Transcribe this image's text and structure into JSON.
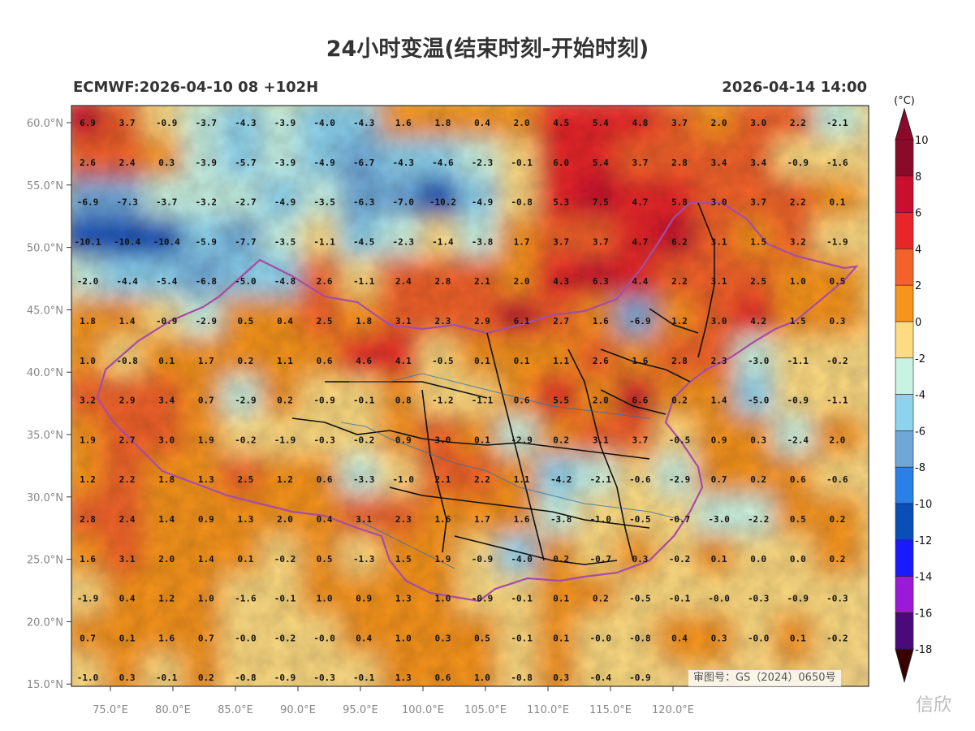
{
  "title": "24小时变温(结束时刻-开始时刻)",
  "model_run": "ECMWF:2026-04-10 08 +102H",
  "valid_time": "2026-04-14 14:00",
  "approval_number": "审图号：GS（2024）0650号",
  "watermark": "信欣",
  "colorbar": {
    "unit": "(°C)",
    "ticks": [
      "10",
      "8",
      "6",
      "4",
      "2",
      "0",
      "-2",
      "-4",
      "-6",
      "-8",
      "-10",
      "-12",
      "-14",
      "-16",
      "-18"
    ],
    "colors_top_to_bottom": [
      "#8a0a2a",
      "#c8102e",
      "#e8262a",
      "#f2622a",
      "#f7941e",
      "#fddb82",
      "#c8f2e2",
      "#8dd3ef",
      "#6fa8d8",
      "#2a7fe8",
      "#0a4fb8",
      "#1a1aff",
      "#9a1ad8",
      "#4a0a7a",
      "#7a0a0a"
    ]
  },
  "map": {
    "lat_ticks": [
      "60.0°N",
      "55.0°N",
      "50.0°N",
      "45.0°N",
      "40.0°N",
      "35.0°N",
      "30.0°N",
      "25.0°N",
      "20.0°N",
      "15.0°N"
    ],
    "lon_ticks": [
      "75.0°E",
      "80.0°E",
      "85.0°E",
      "90.0°E",
      "95.0°E",
      "100.0°E",
      "105.0°E",
      "110.0°E",
      "115.0°E",
      "120.0°E"
    ],
    "grid_values": [
      [
        "6.9",
        "3.7",
        "-0.9",
        "-3.7",
        "-4.3",
        "-3.9",
        "-4.0",
        "-4.3",
        "1.6",
        "1.8",
        "0.4",
        "2.0",
        "4.5",
        "5.4",
        "4.8",
        "3.7",
        "2.0",
        "3.0",
        "2.2",
        "-2.1"
      ],
      [
        "2.6",
        "2.4",
        "0.3",
        "-3.9",
        "-5.7",
        "-3.9",
        "-4.9",
        "-6.7",
        "-4.3",
        "-4.6",
        "-2.3",
        "-0.1",
        "6.0",
        "5.4",
        "3.7",
        "2.8",
        "3.4",
        "3.4",
        "-0.9",
        "-1.6"
      ],
      [
        "-6.9",
        "-7.3",
        "-3.7",
        "-3.2",
        "-2.7",
        "-4.9",
        "-3.5",
        "-6.3",
        "-7.0",
        "-10.2",
        "-4.9",
        "-0.8",
        "5.3",
        "7.5",
        "4.7",
        "5.8",
        "3.0",
        "3.7",
        "2.2",
        "0.1"
      ],
      [
        "-10.1",
        "-10.4",
        "-10.4",
        "-5.9",
        "-7.7",
        "-3.5",
        "-1.1",
        "-4.5",
        "-2.3",
        "-1.4",
        "-3.8",
        "1.7",
        "3.7",
        "3.7",
        "4.7",
        "6.2",
        "3.1",
        "1.5",
        "3.2",
        "-1.9"
      ],
      [
        "-2.0",
        "-4.4",
        "-5.4",
        "-6.8",
        "-5.0",
        "-4.8",
        "2.6",
        "-1.1",
        "2.4",
        "2.8",
        "2.1",
        "2.0",
        "4.3",
        "6.3",
        "4.4",
        "2.2",
        "3.1",
        "2.5",
        "1.0",
        "0.5"
      ],
      [
        "1.8",
        "1.4",
        "-0.9",
        "-2.9",
        "0.5",
        "0.4",
        "2.5",
        "1.8",
        "3.1",
        "2.3",
        "2.9",
        "6.1",
        "2.7",
        "1.6",
        "-6.9",
        "1.2",
        "3.0",
        "4.2",
        "1.5",
        "0.3"
      ],
      [
        "1.0",
        "-0.8",
        "0.1",
        "1.7",
        "0.2",
        "1.1",
        "0.6",
        "4.6",
        "4.1",
        "-0.5",
        "0.1",
        "0.1",
        "1.1",
        "2.6",
        "1.6",
        "2.8",
        "2.3",
        "-3.0",
        "-1.1",
        "-0.2"
      ],
      [
        "3.2",
        "2.9",
        "3.4",
        "0.7",
        "-2.9",
        "0.2",
        "-0.9",
        "-0.1",
        "0.8",
        "-1.2",
        "-1.1",
        "0.6",
        "5.5",
        "2.0",
        "6.6",
        "0.2",
        "1.4",
        "-5.0",
        "-0.9",
        "-1.1"
      ],
      [
        "1.9",
        "2.7",
        "3.0",
        "1.9",
        "-0.2",
        "-1.9",
        "-0.3",
        "-0.2",
        "0.9",
        "3.0",
        "0.1",
        "-2.9",
        "0.2",
        "3.1",
        "3.7",
        "-0.5",
        "0.9",
        "0.3",
        "-2.4",
        "2.0"
      ],
      [
        "1.2",
        "2.2",
        "1.8",
        "1.3",
        "2.5",
        "1.2",
        "0.6",
        "-3.3",
        "-1.0",
        "2.1",
        "2.2",
        "1.1",
        "-4.2",
        "-2.1",
        "-0.6",
        "-2.9",
        "0.7",
        "0.2",
        "0.6",
        "-0.6"
      ],
      [
        "2.8",
        "2.4",
        "1.4",
        "0.9",
        "1.3",
        "2.0",
        "0.4",
        "3.1",
        "2.3",
        "1.6",
        "1.7",
        "1.6",
        "-3.8",
        "-1.0",
        "-0.5",
        "-0.7",
        "-3.0",
        "-2.2",
        "0.5",
        "0.2"
      ],
      [
        "1.6",
        "3.1",
        "2.0",
        "1.4",
        "0.1",
        "-0.2",
        "0.5",
        "-1.3",
        "1.5",
        "1.9",
        "-0.9",
        "-4.0",
        "0.2",
        "-0.7",
        "0.3",
        "-0.2",
        "0.1",
        "0.0",
        "0.0",
        "0.2"
      ],
      [
        "-1.9",
        "0.4",
        "1.2",
        "1.0",
        "-1.6",
        "-0.1",
        "1.0",
        "0.9",
        "1.3",
        "1.0",
        "-0.9",
        "-0.1",
        "0.1",
        "0.2",
        "-0.5",
        "-0.1",
        "-0.0",
        "-0.3",
        "-0.9",
        "-0.3"
      ],
      [
        "0.7",
        "0.1",
        "1.6",
        "0.7",
        "-0.0",
        "-0.2",
        "-0.0",
        "0.4",
        "1.0",
        "0.3",
        "0.5",
        "-0.1",
        "0.1",
        "-0.0",
        "-0.8",
        "0.4",
        "0.3",
        "-0.0",
        "0.1",
        "-0.2"
      ],
      [
        "-1.0",
        "0.3",
        "-0.1",
        "0.2",
        "-0.8",
        "-0.9",
        "-0.3",
        "-0.1",
        "1.3",
        "0.6",
        "1.0",
        "-0.8",
        "0.3",
        "-0.4",
        "-0.9",
        "",
        "",
        "",
        "",
        ""
      ]
    ]
  }
}
